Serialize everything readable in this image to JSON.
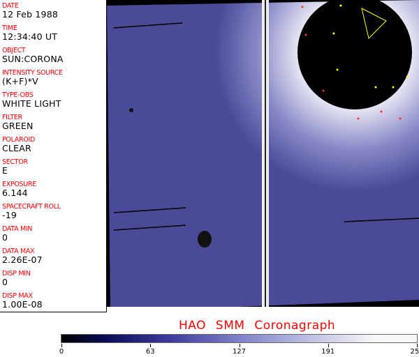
{
  "info": [
    {
      "label": "DATE",
      "value": "12 Feb 1988"
    },
    {
      "label": "TIME",
      "value": "12:34:40 UT"
    },
    {
      "label": "OBJECT",
      "value": "SUN:CORONA"
    },
    {
      "label": "INTENSITY SOURCE",
      "value": "(K+F)*V"
    },
    {
      "label": "TYPE-OBS",
      "value": "WHITE LIGHT"
    },
    {
      "label": "FILTER",
      "value": "GREEN"
    },
    {
      "label": "POLAROID",
      "value": "CLEAR"
    },
    {
      "label": "SECTOR",
      "value": "E"
    },
    {
      "label": "EXPOSURE",
      "value": "6.144"
    },
    {
      "label": "SPACECRAFT ROLL",
      "value": "-19"
    },
    {
      "label": "DATA MIN",
      "value": "0"
    },
    {
      "label": "DATA MAX",
      "value": "2.26E-07"
    },
    {
      "label": "DISP MIN",
      "value": "0"
    },
    {
      "label": "DISP MAX",
      "value": "1.00E-08"
    }
  ],
  "title": "HAO  SMM Coronagraph",
  "colorbar": {
    "ticks": [
      "0",
      "63",
      "127",
      "191",
      "255"
    ]
  }
}
